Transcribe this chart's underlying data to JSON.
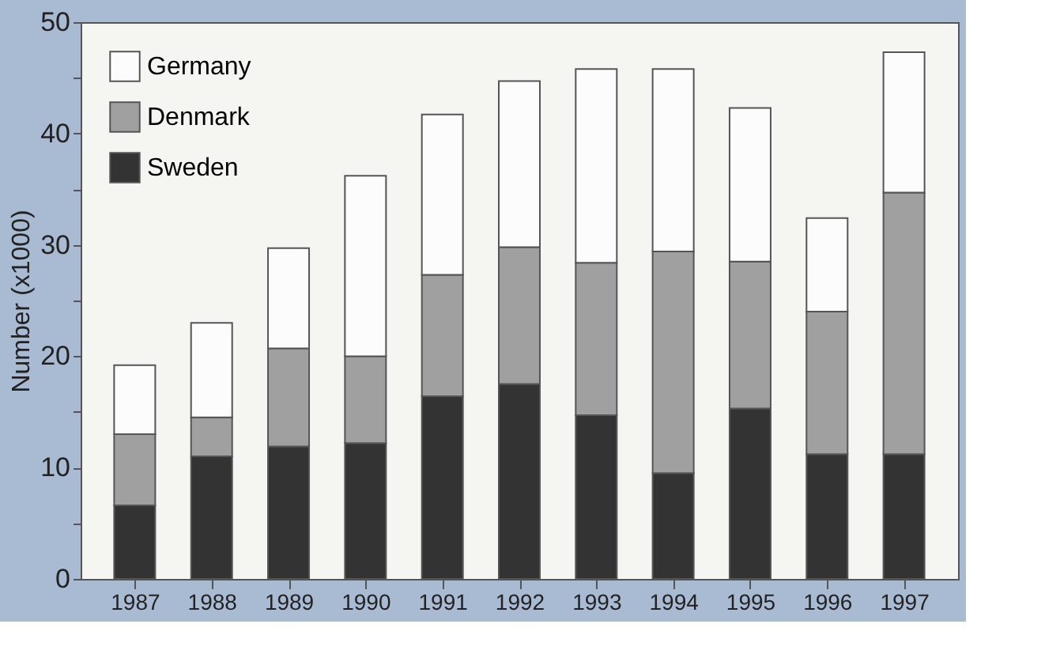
{
  "chart_data": {
    "type": "bar",
    "stacked": true,
    "ylabel": "Number (x1000)",
    "categories": [
      "1987",
      "1988",
      "1989",
      "1990",
      "1991",
      "1992",
      "1993",
      "1994",
      "1995",
      "1996",
      "1997"
    ],
    "series": [
      {
        "name": "Sweden",
        "color": "#333333",
        "values": [
          6.6,
          11.0,
          11.9,
          12.2,
          16.4,
          17.5,
          14.7,
          9.5,
          15.3,
          11.2,
          11.2
        ]
      },
      {
        "name": "Denmark",
        "color": "#a0a0a0",
        "values": [
          6.4,
          3.5,
          8.8,
          7.8,
          10.9,
          12.3,
          13.7,
          19.9,
          13.2,
          12.8,
          23.5
        ]
      },
      {
        "name": "Germany",
        "color": "#fcfcfc",
        "values": [
          6.2,
          8.5,
          9.0,
          16.2,
          14.4,
          14.9,
          17.4,
          16.4,
          13.8,
          8.4,
          12.6
        ]
      }
    ],
    "ylim": [
      0,
      50
    ],
    "yticks": [
      0,
      {
        "value": 5,
        "label": null
      },
      10,
      {
        "value": 15,
        "label": null
      },
      20,
      {
        "value": 25,
        "label": null
      },
      30,
      {
        "value": 35,
        "label": null
      },
      40,
      {
        "value": 45,
        "label": null
      },
      50
    ],
    "grid": false,
    "legend": "top left"
  }
}
